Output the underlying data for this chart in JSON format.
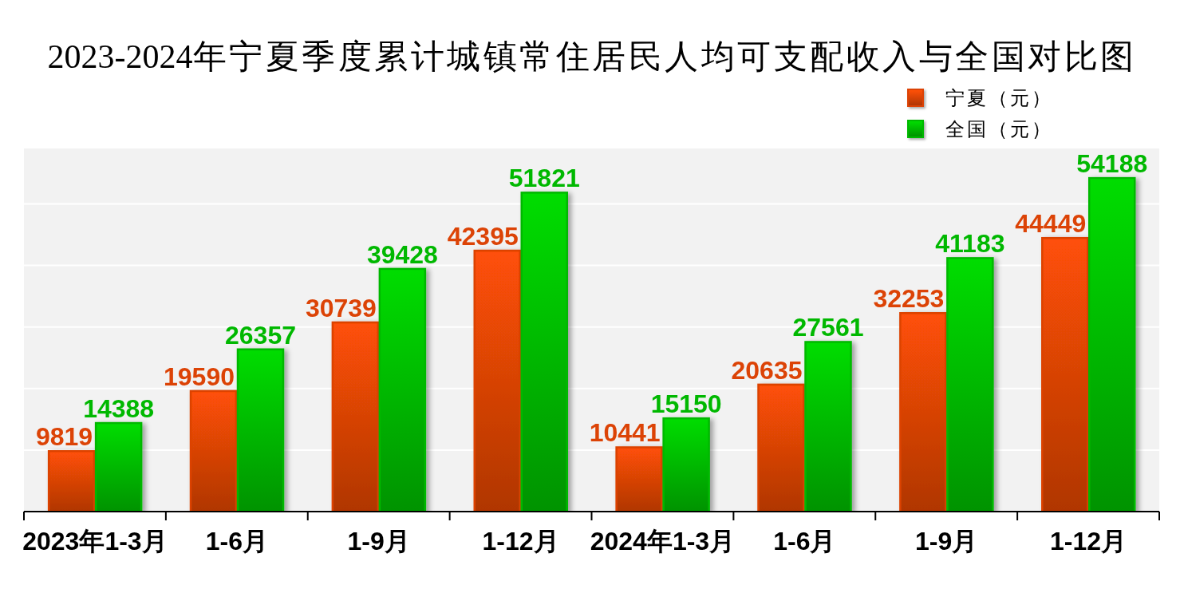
{
  "chart_data": {
    "type": "bar",
    "title": "2023-2024年宁夏季度累计城镇常住居民人均可支配收入与全国对比图",
    "categories": [
      "2023年1-3月",
      "1-6月",
      "1-9月",
      "1-12月",
      "2024年1-3月",
      "1-6月",
      "1-9月",
      "1-12月"
    ],
    "series": [
      {
        "name": "宁夏（元）",
        "color": "#dc4306",
        "values": [
          9819,
          19590,
          30739,
          42395,
          10441,
          20635,
          32253,
          44449
        ]
      },
      {
        "name": "全国（元）",
        "color": "#00b800",
        "values": [
          14388,
          26357,
          39428,
          51821,
          15150,
          27561,
          41183,
          54188
        ]
      }
    ],
    "ylim": [
      0,
      59000
    ],
    "yticks": [
      {
        "value": 0,
        "label": null
      },
      {
        "value": 10000,
        "label": null
      },
      {
        "value": 20000,
        "label": null
      },
      {
        "value": 30000,
        "label": null
      },
      {
        "value": 40000,
        "label": null
      },
      {
        "value": 50000,
        "label": null
      }
    ],
    "tick_labels": "x",
    "grid": "y",
    "legend": "top right",
    "data_labels": true
  }
}
